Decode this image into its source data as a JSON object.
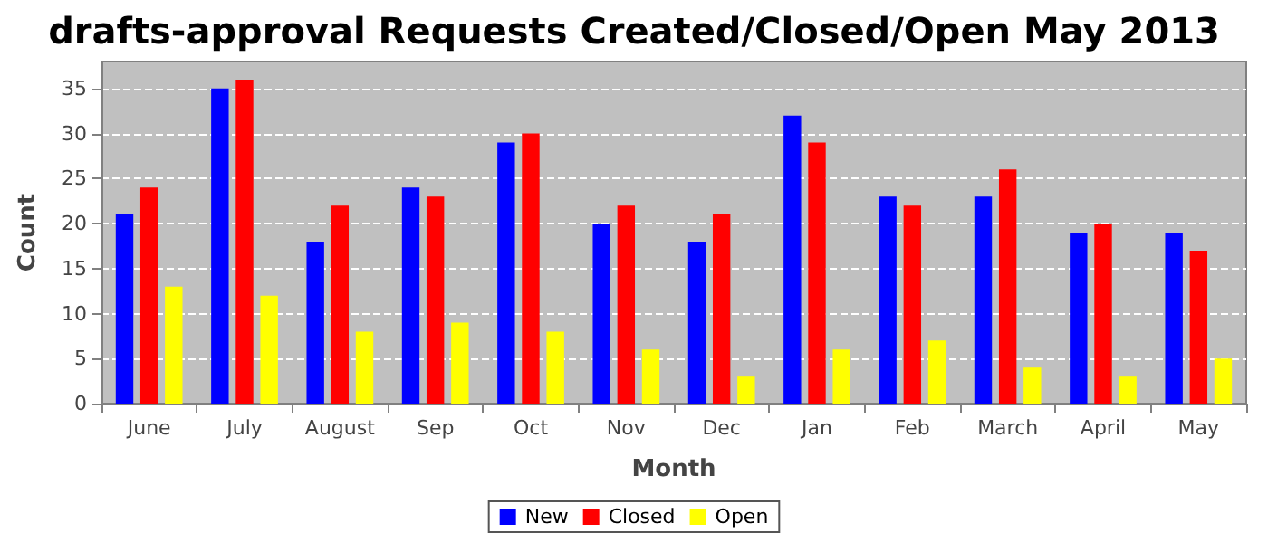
{
  "chart_data": {
    "type": "bar",
    "title": "drafts-approval Requests Created/Closed/Open May 2013",
    "xlabel": "Month",
    "ylabel": "Count",
    "categories": [
      "June",
      "July",
      "August",
      "Sep",
      "Oct",
      "Nov",
      "Dec",
      "Jan",
      "Feb",
      "March",
      "April",
      "May"
    ],
    "series": [
      {
        "name": "New",
        "color": "#0000ff",
        "values": [
          21,
          35,
          18,
          24,
          29,
          20,
          18,
          32,
          23,
          23,
          19,
          19
        ]
      },
      {
        "name": "Closed",
        "color": "#ff0000",
        "values": [
          24,
          36,
          22,
          23,
          30,
          22,
          21,
          29,
          22,
          26,
          20,
          17
        ]
      },
      {
        "name": "Open",
        "color": "#ffff00",
        "values": [
          13,
          12,
          8,
          9,
          8,
          6,
          3,
          6,
          7,
          4,
          3,
          5
        ]
      }
    ],
    "ylim": [
      0,
      38
    ],
    "yticks": [
      0,
      5,
      10,
      15,
      20,
      25,
      30,
      35
    ],
    "grid": "y",
    "legend": "bottom"
  }
}
